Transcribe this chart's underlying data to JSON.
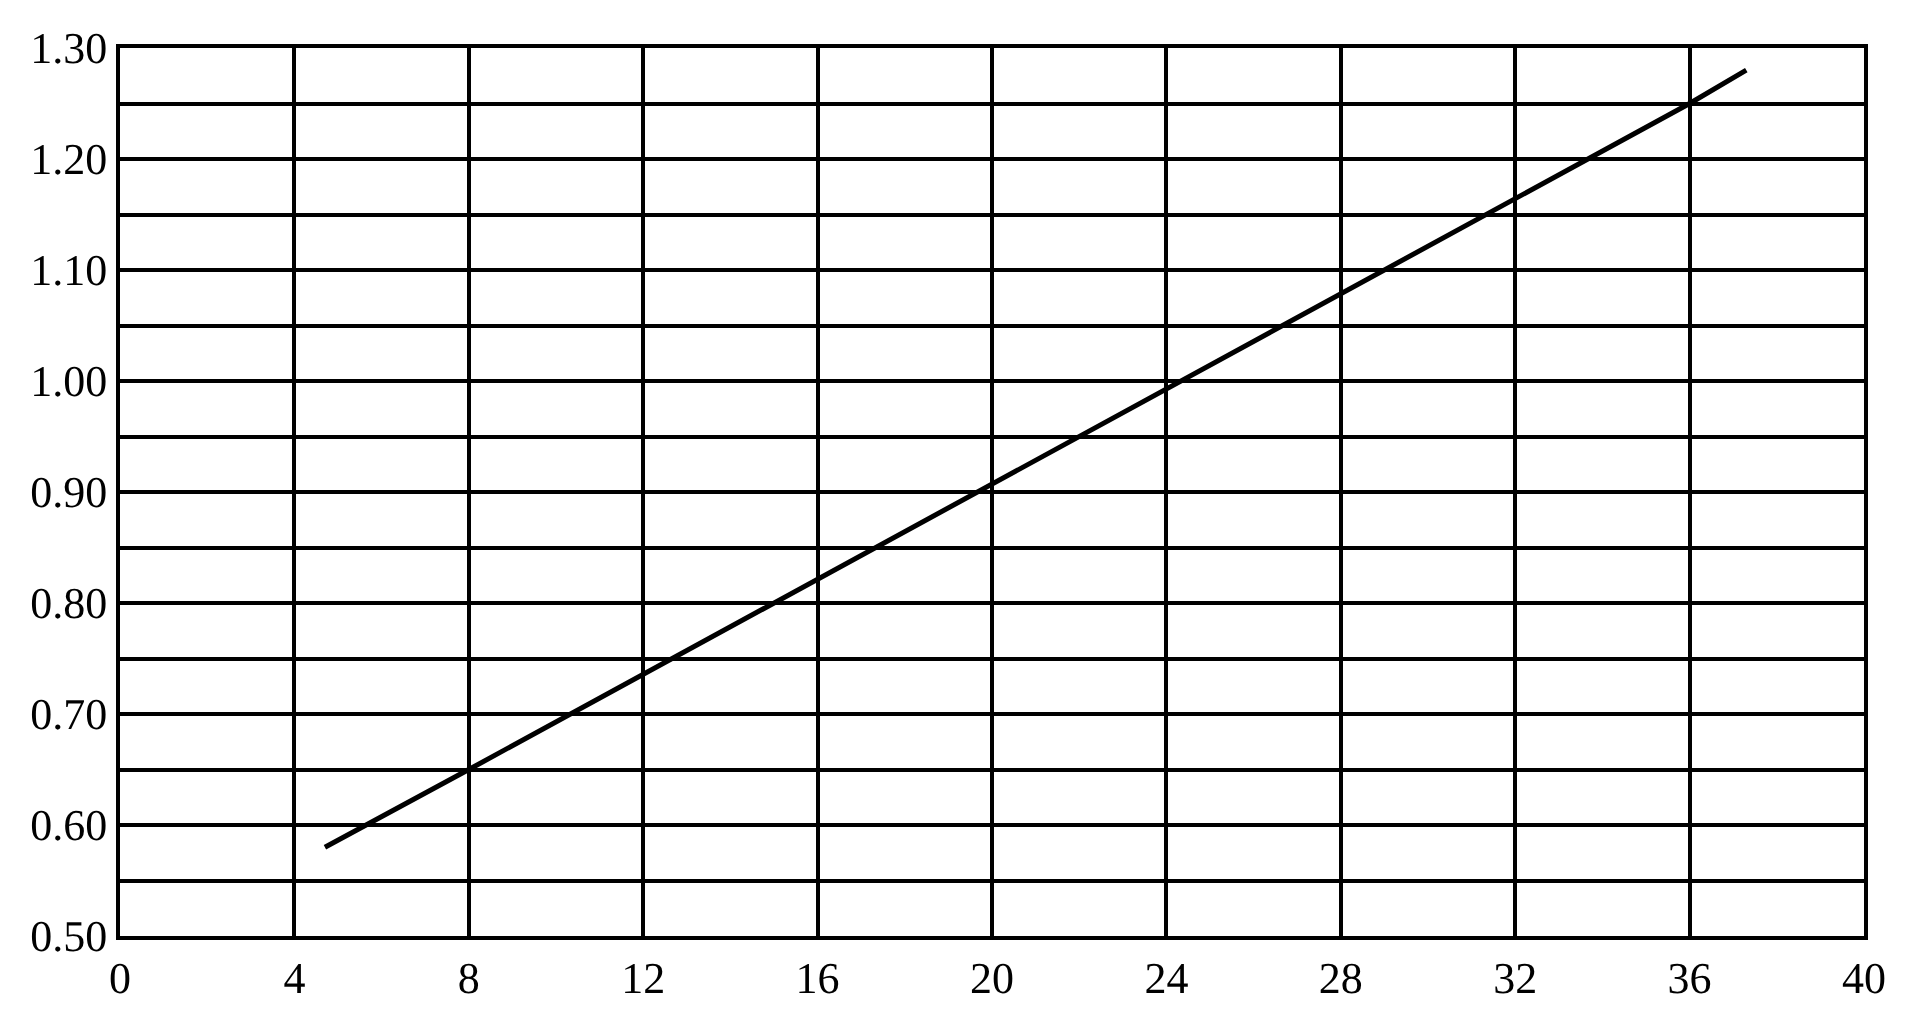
{
  "chart_data": {
    "type": "line",
    "x": [
      4.7,
      8,
      36,
      37.3
    ],
    "series": [
      {
        "color": "#000000",
        "values": [
          0.58,
          0.65,
          1.25,
          1.28
        ]
      }
    ],
    "xlim": [
      0,
      40
    ],
    "xticks": [
      0,
      4,
      8,
      12,
      16,
      20,
      24,
      28,
      32,
      36,
      40
    ],
    "ylim": [
      0.5,
      1.3
    ],
    "yticks": [
      {
        "value": 0.5,
        "label": "0.50"
      },
      {
        "value": 0.55,
        "label": null
      },
      {
        "value": 0.6,
        "label": "0.60"
      },
      {
        "value": 0.65,
        "label": null
      },
      {
        "value": 0.7,
        "label": "0.70"
      },
      {
        "value": 0.75,
        "label": null
      },
      {
        "value": 0.8,
        "label": "0.80"
      },
      {
        "value": 0.85,
        "label": null
      },
      {
        "value": 0.9,
        "label": "0.90"
      },
      {
        "value": 0.95,
        "label": null
      },
      {
        "value": 1.0,
        "label": "1.00"
      },
      {
        "value": 1.05,
        "label": null
      },
      {
        "value": 1.1,
        "label": "1.10"
      },
      {
        "value": 1.15,
        "label": null
      },
      {
        "value": 1.2,
        "label": "1.20"
      },
      {
        "value": 1.25,
        "label": null
      },
      {
        "value": 1.3,
        "label": "1.30"
      }
    ],
    "grid": true,
    "marker": "none",
    "line_style": "solid"
  }
}
